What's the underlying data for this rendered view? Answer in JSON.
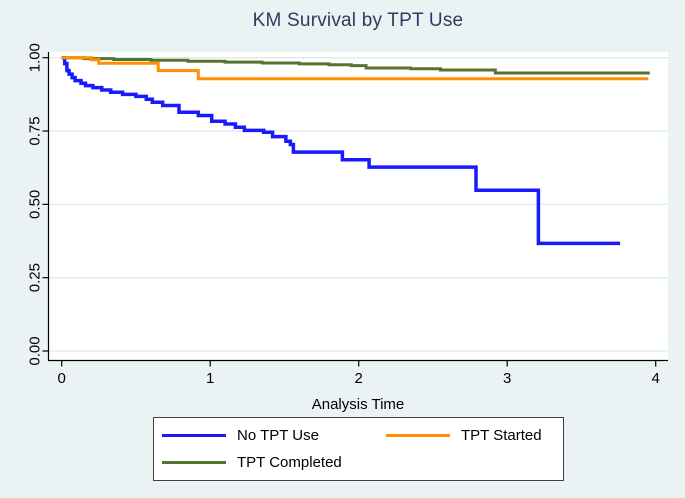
{
  "chart_data": {
    "type": "line",
    "subtype": "kaplan-meier-step",
    "title": "KM Survival by TPT Use",
    "xlabel": "Analysis Time",
    "ylabel": "",
    "xlim": [
      0,
      4.1
    ],
    "ylim": [
      0,
      1.0
    ],
    "grid": true,
    "legend_position": "bottom",
    "x_ticks": [
      {
        "label": "0",
        "value": 0
      },
      {
        "label": "1",
        "value": 1
      },
      {
        "label": "2",
        "value": 2
      },
      {
        "label": "3",
        "value": 3
      },
      {
        "label": "4",
        "value": 4
      }
    ],
    "y_ticks": [
      {
        "label": "0.00",
        "value": 0.0
      },
      {
        "label": "0.25",
        "value": 0.25
      },
      {
        "label": "0.50",
        "value": 0.5
      },
      {
        "label": "0.75",
        "value": 0.75
      },
      {
        "label": "1.00",
        "value": 1.0
      }
    ],
    "series": [
      {
        "name": "No TPT Use",
        "color": "#1a1aff",
        "line_width": 3.5,
        "points": [
          [
            0,
            1.0
          ],
          [
            0.02,
            0.98
          ],
          [
            0.035,
            0.956
          ],
          [
            0.05,
            0.944
          ],
          [
            0.07,
            0.932
          ],
          [
            0.09,
            0.922
          ],
          [
            0.13,
            0.913
          ],
          [
            0.16,
            0.905
          ],
          [
            0.21,
            0.898
          ],
          [
            0.27,
            0.89
          ],
          [
            0.33,
            0.882
          ],
          [
            0.41,
            0.875
          ],
          [
            0.5,
            0.868
          ],
          [
            0.57,
            0.858
          ],
          [
            0.61,
            0.848
          ],
          [
            0.68,
            0.837
          ],
          [
            0.79,
            0.814
          ],
          [
            0.92,
            0.803
          ],
          [
            1.01,
            0.783
          ],
          [
            1.1,
            0.774
          ],
          [
            1.17,
            0.763
          ],
          [
            1.23,
            0.752
          ],
          [
            1.36,
            0.746
          ],
          [
            1.42,
            0.731
          ],
          [
            1.51,
            0.715
          ],
          [
            1.54,
            0.704
          ],
          [
            1.56,
            0.678
          ],
          [
            1.89,
            0.652
          ],
          [
            2.07,
            0.627
          ],
          [
            2.79,
            0.548
          ],
          [
            3.21,
            0.367
          ],
          [
            3.76,
            0.367
          ]
        ]
      },
      {
        "name": "TPT Started",
        "color": "#ff8f00",
        "line_width": 3,
        "points": [
          [
            0,
            1.0
          ],
          [
            0.2,
            0.993
          ],
          [
            0.25,
            0.981
          ],
          [
            0.65,
            0.956
          ],
          [
            0.92,
            0.928
          ],
          [
            3.95,
            0.928
          ]
        ]
      },
      {
        "name": "TPT Completed",
        "color": "#55752e",
        "line_width": 3,
        "points": [
          [
            0,
            1.0
          ],
          [
            0.15,
            0.997
          ],
          [
            0.35,
            0.994
          ],
          [
            0.6,
            0.991
          ],
          [
            0.85,
            0.988
          ],
          [
            1.1,
            0.985
          ],
          [
            1.35,
            0.982
          ],
          [
            1.6,
            0.979
          ],
          [
            1.8,
            0.976
          ],
          [
            1.95,
            0.973
          ],
          [
            2.05,
            0.965
          ],
          [
            2.35,
            0.962
          ],
          [
            2.55,
            0.958
          ],
          [
            2.92,
            0.948
          ],
          [
            3.96,
            0.948
          ]
        ]
      }
    ]
  },
  "legend": {
    "rows": [
      [
        0,
        1
      ],
      [
        2
      ]
    ]
  },
  "colors": {
    "canvas_background": "#eaf2f3",
    "plot_background": "#ffffff",
    "gridline": "#dfeaed",
    "axis": "#000000",
    "title_text": "#2d3c5e",
    "legend_border": "#3f3f3f"
  }
}
